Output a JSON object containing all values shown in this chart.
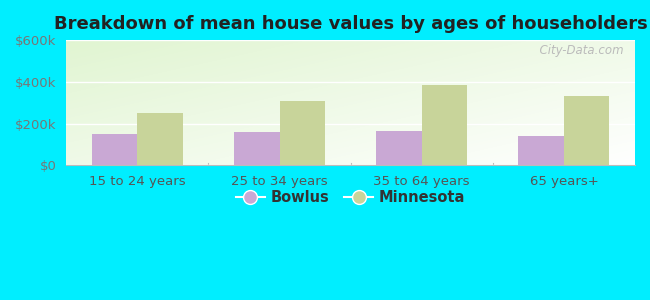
{
  "title": "Breakdown of mean house values by ages of householders",
  "categories": [
    "15 to 24 years",
    "25 to 34 years",
    "35 to 64 years",
    "65 years+"
  ],
  "bowlus_values": [
    150000,
    160000,
    165000,
    140000
  ],
  "minnesota_values": [
    250000,
    310000,
    385000,
    330000
  ],
  "ylim": [
    0,
    600000
  ],
  "ytick_labels": [
    "$0",
    "$200k",
    "$400k",
    "$600k"
  ],
  "ytick_values": [
    0,
    200000,
    400000,
    600000
  ],
  "bowlus_color": "#c9a8d4",
  "minnesota_color": "#c8d49a",
  "background_outer": "#00eeff",
  "bar_width": 0.32,
  "legend_labels": [
    "Bowlus",
    "Minnesota"
  ],
  "watermark": "  City-Data.com",
  "title_fontsize": 13,
  "tick_fontsize": 9.5,
  "legend_fontsize": 10.5
}
